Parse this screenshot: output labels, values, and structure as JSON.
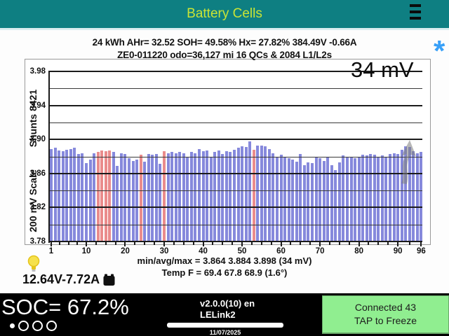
{
  "header": {
    "title": "Battery Cells"
  },
  "stats": {
    "line1": "24 kWh  AHr= 32.52  SOH= 49.58%   Hx= 27.82%   384.49V -0.66A",
    "line2": "ZE0-011220 odo=36,127 mi  16 QCs & 2084 L1/L2s"
  },
  "chart": {
    "delta_label": "34 mV",
    "asterisk": "*",
    "ylabel_top": "Shunts 8421",
    "ylabel_bottom": "200 mV Scale"
  },
  "chart_data": {
    "type": "bar",
    "title": "Battery Cells",
    "xlabel": "",
    "ylabel": "200 mV Scale / Shunts 8421",
    "ylim": [
      3.78,
      3.98
    ],
    "yticks": [
      "3.98",
      "3.94",
      "3.90",
      "3.86",
      "3.82",
      "3.78"
    ],
    "ytick_minor_step": 0.02,
    "xticks": [
      1,
      10,
      20,
      30,
      40,
      50,
      60,
      70,
      80,
      90,
      96
    ],
    "bar_color": "#8689dc",
    "shunt_color": "#ea8c8c",
    "grid": true,
    "shunted_cells": [
      13,
      14,
      15,
      16,
      24,
      30,
      53
    ],
    "values": [
      3.889,
      3.89,
      3.887,
      3.886,
      3.888,
      3.889,
      3.89,
      3.883,
      3.884,
      3.872,
      3.876,
      3.884,
      3.885,
      3.887,
      3.886,
      3.887,
      3.885,
      3.869,
      3.884,
      3.883,
      3.878,
      3.875,
      3.876,
      3.882,
      3.874,
      3.883,
      3.882,
      3.883,
      3.871,
      3.886,
      3.884,
      3.885,
      3.884,
      3.885,
      3.884,
      3.879,
      3.885,
      3.884,
      3.889,
      3.886,
      3.887,
      3.88,
      3.885,
      3.887,
      3.883,
      3.886,
      3.885,
      3.888,
      3.89,
      3.892,
      3.891,
      3.898,
      3.888,
      3.893,
      3.893,
      3.892,
      3.889,
      3.884,
      3.88,
      3.882,
      3.879,
      3.878,
      3.876,
      3.874,
      3.883,
      3.87,
      3.873,
      3.872,
      3.88,
      3.878,
      3.875,
      3.88,
      3.87,
      3.864,
      3.873,
      3.881,
      3.879,
      3.88,
      3.878,
      3.88,
      3.882,
      3.881,
      3.883,
      3.882,
      3.88,
      3.881,
      3.879,
      3.883,
      3.884,
      3.883,
      3.888,
      3.892,
      3.891,
      3.886,
      3.884,
      3.885
    ],
    "min_avg_max": [
      3.864,
      3.884,
      3.898
    ],
    "delta_mv": 34,
    "temp_f": [
      69.4,
      67.8,
      68.9
    ],
    "temp_delta_deg": 1.6
  },
  "summary": {
    "min_avg_max": "min/avg/max = 3.864 3.884 3.898  (34 mV)",
    "temp": "Temp F = 69.4  67.8  68.9  (1.6°)"
  },
  "aux": {
    "battery_12v": "12.64V-7.72A"
  },
  "statusbar": {
    "soc": "SOC= 67.2%",
    "version": "v2.0.0(10) en",
    "adapter": "LELink2",
    "date": "11/07/2025",
    "connected": "Connected 43",
    "tap": "TAP to Freeze"
  },
  "colors": {
    "header_bg": "#0e7f82",
    "title_text": "#c9e435",
    "bar_blue": "#8689dc",
    "bar_red": "#ea8c8c",
    "connected_bg": "#90ee90",
    "asterisk_blue": "#38a0f8",
    "bottom_bar_bg": "#000000"
  }
}
